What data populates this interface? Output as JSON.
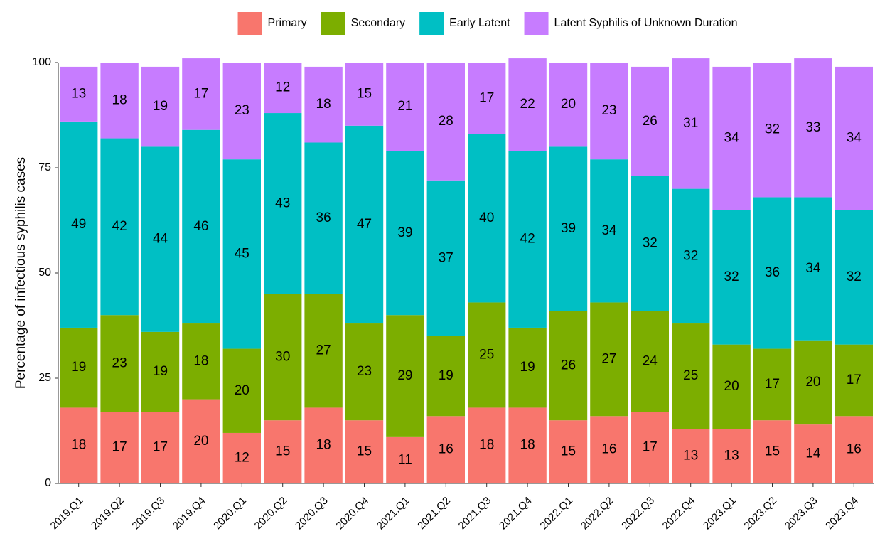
{
  "chart_data": {
    "type": "stacked_bar",
    "y_label": "Percentage of infectious syphilis cases",
    "categories": [
      "2019.Q1",
      "2019.Q2",
      "2019.Q3",
      "2019.Q4",
      "2020.Q1",
      "2020.Q2",
      "2020.Q3",
      "2020.Q4",
      "2021.Q1",
      "2021.Q2",
      "2021.Q3",
      "2021.Q4",
      "2022.Q1",
      "2022.Q2",
      "2022.Q3",
      "2022.Q4",
      "2023.Q1",
      "2023.Q2",
      "2023.Q3",
      "2023.Q4"
    ],
    "series": [
      {
        "name": "Primary",
        "color": "#F8766D",
        "values": [
          18,
          17,
          17,
          20,
          12,
          15,
          18,
          15,
          11,
          16,
          18,
          18,
          15,
          16,
          17,
          13,
          13,
          15,
          14,
          16
        ]
      },
      {
        "name": "Secondary",
        "color": "#7CAE00",
        "values": [
          19,
          23,
          19,
          18,
          20,
          30,
          27,
          23,
          29,
          19,
          25,
          19,
          26,
          27,
          24,
          25,
          20,
          17,
          20,
          17
        ]
      },
      {
        "name": "Early Latent",
        "color": "#00BFC4",
        "values": [
          49,
          42,
          44,
          46,
          45,
          43,
          36,
          47,
          39,
          37,
          40,
          42,
          39,
          34,
          32,
          32,
          32,
          36,
          34,
          32
        ]
      },
      {
        "name": "Latent Syphilis of Unknown Duration",
        "color": "#C77CFF",
        "values": [
          13,
          18,
          19,
          17,
          23,
          12,
          18,
          15,
          21,
          28,
          17,
          22,
          20,
          23,
          26,
          31,
          34,
          32,
          33,
          34
        ]
      }
    ],
    "ylim": [
      0,
      100
    ],
    "yticks": [
      0,
      25,
      50,
      75,
      100
    ],
    "grid": false,
    "legend": "top"
  }
}
